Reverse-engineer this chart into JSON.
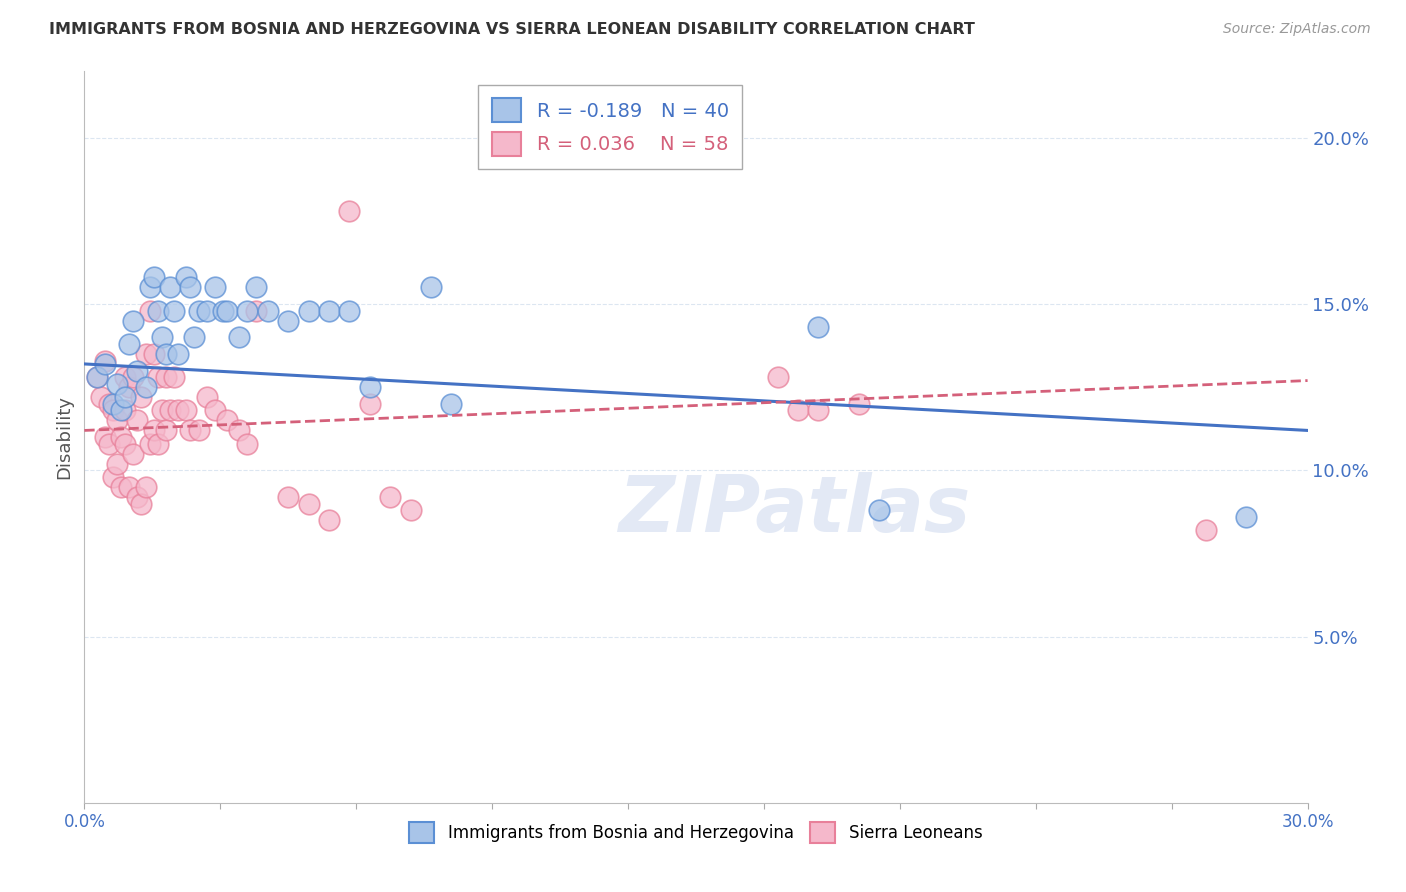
{
  "title": "IMMIGRANTS FROM BOSNIA AND HERZEGOVINA VS SIERRA LEONEAN DISABILITY CORRELATION CHART",
  "source": "Source: ZipAtlas.com",
  "ylabel": "Disability",
  "watermark": "ZIPatlas",
  "xlim": [
    0.0,
    0.3
  ],
  "ylim": [
    0.0,
    0.22
  ],
  "xticks": [
    0.0,
    0.03333,
    0.06667,
    0.1,
    0.13333,
    0.16667,
    0.2,
    0.23333,
    0.26667,
    0.3
  ],
  "xticklabel_left": "0.0%",
  "xticklabel_right": "30.0%",
  "yticks_right": [
    0.05,
    0.1,
    0.15,
    0.2
  ],
  "blue_R": "-0.189",
  "blue_N": "40",
  "pink_R": "0.036",
  "pink_N": "58",
  "blue_color": "#a8c4e8",
  "pink_color": "#f5b8cb",
  "blue_edge_color": "#5b8fd4",
  "pink_edge_color": "#e8809a",
  "blue_line_color": "#4472c4",
  "pink_line_color": "#d4607a",
  "grid_color": "#dce6f1",
  "background_color": "#ffffff",
  "blue_line_y0": 0.132,
  "blue_line_y1": 0.112,
  "pink_line_y0": 0.112,
  "pink_line_y1": 0.127,
  "blue_scatter_x": [
    0.003,
    0.005,
    0.007,
    0.008,
    0.009,
    0.01,
    0.011,
    0.012,
    0.013,
    0.015,
    0.016,
    0.017,
    0.018,
    0.019,
    0.02,
    0.021,
    0.022,
    0.023,
    0.025,
    0.026,
    0.027,
    0.028,
    0.03,
    0.032,
    0.034,
    0.035,
    0.038,
    0.04,
    0.042,
    0.045,
    0.05,
    0.055,
    0.06,
    0.065,
    0.07,
    0.085,
    0.09,
    0.18,
    0.195,
    0.285
  ],
  "blue_scatter_y": [
    0.128,
    0.132,
    0.12,
    0.126,
    0.118,
    0.122,
    0.138,
    0.145,
    0.13,
    0.125,
    0.155,
    0.158,
    0.148,
    0.14,
    0.135,
    0.155,
    0.148,
    0.135,
    0.158,
    0.155,
    0.14,
    0.148,
    0.148,
    0.155,
    0.148,
    0.148,
    0.14,
    0.148,
    0.155,
    0.148,
    0.145,
    0.148,
    0.148,
    0.148,
    0.125,
    0.155,
    0.12,
    0.143,
    0.088,
    0.086
  ],
  "pink_scatter_x": [
    0.003,
    0.004,
    0.005,
    0.005,
    0.006,
    0.006,
    0.007,
    0.007,
    0.008,
    0.008,
    0.009,
    0.009,
    0.01,
    0.01,
    0.01,
    0.011,
    0.011,
    0.012,
    0.012,
    0.013,
    0.013,
    0.014,
    0.014,
    0.015,
    0.015,
    0.016,
    0.016,
    0.017,
    0.017,
    0.018,
    0.018,
    0.019,
    0.02,
    0.02,
    0.021,
    0.022,
    0.023,
    0.025,
    0.026,
    0.028,
    0.03,
    0.032,
    0.035,
    0.038,
    0.04,
    0.042,
    0.05,
    0.055,
    0.06,
    0.065,
    0.07,
    0.075,
    0.08,
    0.17,
    0.175,
    0.18,
    0.19,
    0.275
  ],
  "pink_scatter_y": [
    0.128,
    0.122,
    0.133,
    0.11,
    0.12,
    0.108,
    0.118,
    0.098,
    0.115,
    0.102,
    0.11,
    0.095,
    0.128,
    0.118,
    0.108,
    0.125,
    0.095,
    0.128,
    0.105,
    0.115,
    0.092,
    0.122,
    0.09,
    0.135,
    0.095,
    0.148,
    0.108,
    0.135,
    0.112,
    0.128,
    0.108,
    0.118,
    0.128,
    0.112,
    0.118,
    0.128,
    0.118,
    0.118,
    0.112,
    0.112,
    0.122,
    0.118,
    0.115,
    0.112,
    0.108,
    0.148,
    0.092,
    0.09,
    0.085,
    0.178,
    0.12,
    0.092,
    0.088,
    0.128,
    0.118,
    0.118,
    0.12,
    0.082
  ]
}
